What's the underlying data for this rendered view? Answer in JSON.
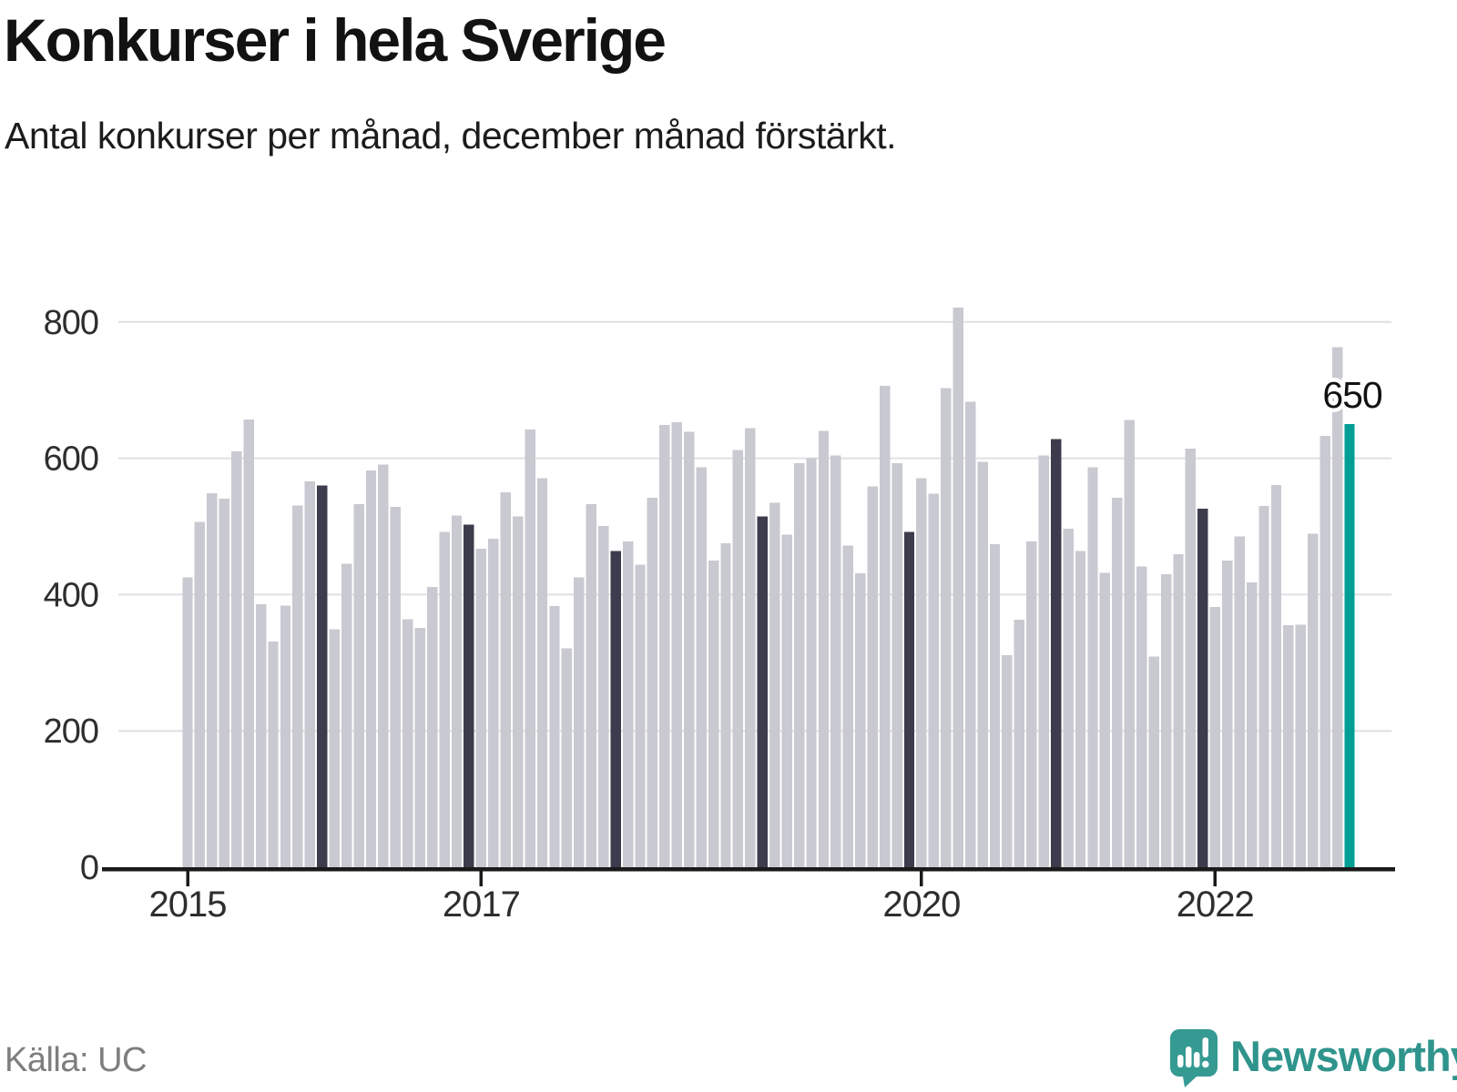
{
  "header": {
    "title": "Konkurser i hela Sverige",
    "subtitle": "Antal konkurser per månad, december månad förstärkt."
  },
  "footer": {
    "source": "Källa: UC",
    "brand": "Newsworthy",
    "brand_color": "#2f948c",
    "logo_icon": "speech-bubble-with-bar-chart-and-exclamation"
  },
  "chart_data": {
    "type": "bar",
    "title": "Konkurser i hela Sverige",
    "subtitle": "Antal konkurser per månad, december månad förstärkt.",
    "x": [
      "2015-01",
      "2015-02",
      "2015-03",
      "2015-04",
      "2015-05",
      "2015-06",
      "2015-07",
      "2015-08",
      "2015-09",
      "2015-10",
      "2015-11",
      "2015-12",
      "2016-01",
      "2016-02",
      "2016-03",
      "2016-04",
      "2016-05",
      "2016-06",
      "2016-07",
      "2016-08",
      "2016-09",
      "2016-10",
      "2016-11",
      "2016-12",
      "2017-01",
      "2017-02",
      "2017-03",
      "2017-04",
      "2017-05",
      "2017-06",
      "2017-07",
      "2017-08",
      "2017-09",
      "2017-10",
      "2017-11",
      "2017-12",
      "2018-01",
      "2018-02",
      "2018-03",
      "2018-04",
      "2018-05",
      "2018-06",
      "2018-07",
      "2018-08",
      "2018-09",
      "2018-10",
      "2018-11",
      "2018-12",
      "2019-01",
      "2019-02",
      "2019-03",
      "2019-04",
      "2019-05",
      "2019-06",
      "2019-07",
      "2019-08",
      "2019-09",
      "2019-10",
      "2019-11",
      "2019-12",
      "2020-01",
      "2020-02",
      "2020-03",
      "2020-04",
      "2020-05",
      "2020-06",
      "2020-07",
      "2020-08",
      "2020-09",
      "2020-10",
      "2020-11",
      "2020-12",
      "2021-01",
      "2021-02",
      "2021-03",
      "2021-04",
      "2021-05",
      "2021-06",
      "2021-07",
      "2021-08",
      "2021-09",
      "2021-10",
      "2021-11",
      "2021-12",
      "2022-01",
      "2022-02",
      "2022-03",
      "2022-04",
      "2022-05",
      "2022-06",
      "2022-07",
      "2022-08",
      "2022-09",
      "2022-10",
      "2022-11",
      "2022-12"
    ],
    "values": [
      425,
      507,
      549,
      541,
      610,
      657,
      386,
      331,
      384,
      531,
      566,
      560,
      349,
      445,
      533,
      582,
      591,
      529,
      364,
      351,
      411,
      492,
      516,
      503,
      467,
      482,
      550,
      515,
      642,
      571,
      383,
      321,
      425,
      533,
      501,
      464,
      478,
      444,
      542,
      649,
      653,
      639,
      587,
      450,
      475,
      612,
      644,
      515,
      535,
      488,
      593,
      600,
      640,
      604,
      472,
      431,
      559,
      706,
      593,
      492,
      571,
      548,
      703,
      821,
      683,
      595,
      474,
      311,
      363,
      478,
      604,
      628,
      497,
      464,
      587,
      432,
      542,
      656,
      441,
      309,
      430,
      459,
      614,
      526,
      382,
      450,
      485,
      418,
      530,
      561,
      355,
      356,
      489,
      633,
      763,
      650
    ],
    "ylim": [
      0,
      800
    ],
    "y_ticks": [
      0,
      200,
      400,
      600,
      800
    ],
    "x_tick_months": [
      "2015-01",
      "2017-01",
      "2020-01",
      "2022-01"
    ],
    "x_tick_labels": [
      "2015",
      "2017",
      "2020",
      "2022"
    ],
    "grid": "horizontal",
    "december_bars_darkened": true,
    "highlight_month": "2022-12",
    "annotation": {
      "text": "650",
      "month": "2022-12",
      "value": 650
    },
    "colors": {
      "bar": "#c9c9d1",
      "december_bar": "#3c3c4c",
      "highlight_bar": "#009e94",
      "gridline": "#e0e0e3",
      "axis": "#1a1a1a",
      "tick_label": "#2e2e2e",
      "annotation_text": "#111111"
    }
  }
}
